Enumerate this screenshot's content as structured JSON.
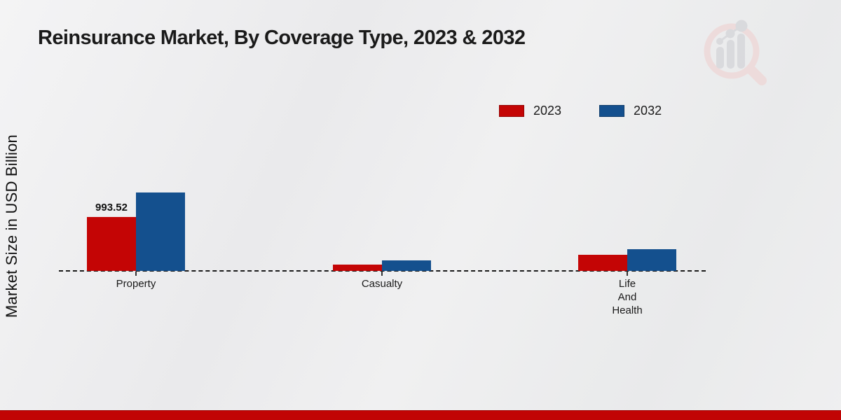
{
  "page": {
    "background_color": "#ececed",
    "footer_band_color": "#c10404"
  },
  "logo": {
    "name": "market-research-magnifier-bar-chart-logo",
    "ring_color": "#eeD9d9",
    "bars_color": "#d7d7db"
  },
  "chart_data": {
    "type": "bar",
    "title": "Reinsurance Market, By Coverage Type, 2023 & 2032",
    "ylabel": "Market Size in USD Billion",
    "xlabel": "",
    "categories": [
      "Property",
      "Casualty",
      "Life\nAnd\nHealth"
    ],
    "series": [
      {
        "name": "2023",
        "color": "#c40505",
        "values": [
          993.52,
          116,
          297
        ]
      },
      {
        "name": "2032",
        "color": "#14508e",
        "values": [
          1445,
          194,
          400
        ]
      }
    ],
    "data_labels": [
      {
        "series": "2023",
        "category": "Property",
        "text": "993.52"
      }
    ],
    "legend": {
      "position": "top-right",
      "entries": [
        "2023",
        "2032"
      ]
    },
    "baseline_style": "dashed",
    "y_axis_ticks_visible": false,
    "ylim": [
      0,
      1500
    ]
  }
}
